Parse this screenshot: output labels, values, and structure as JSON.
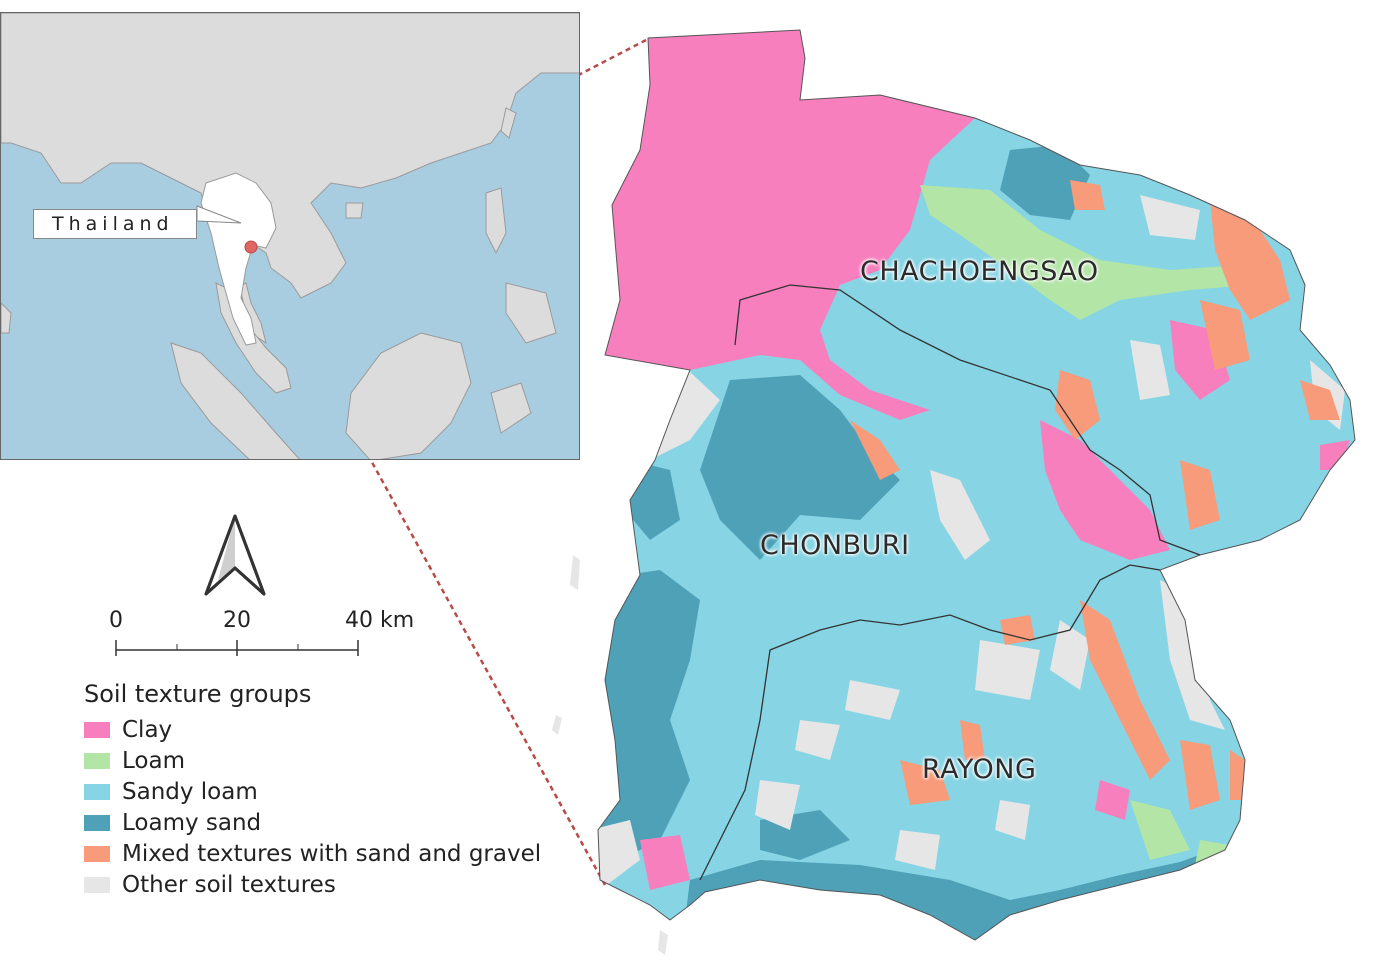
{
  "inset": {
    "callout_label": "Thailand",
    "colors": {
      "sea": "#a9cde0",
      "land": "#dcdcdc",
      "highlight": "#ffffff",
      "marker": "#e06464"
    }
  },
  "map": {
    "regions": [
      {
        "id": "chachoengsao",
        "label": "CHACHOENGSAO"
      },
      {
        "id": "chonburi",
        "label": "CHONBURI"
      },
      {
        "id": "rayong",
        "label": "RAYONG"
      }
    ],
    "leader_line_color": "#b94a48"
  },
  "north_arrow": {
    "icon": "north-arrow-icon"
  },
  "scale": {
    "ticks": [
      "0",
      "20",
      "40 km"
    ]
  },
  "legend": {
    "title": "Soil texture groups",
    "items": [
      {
        "label": "Clay",
        "color": "#f77fbe"
      },
      {
        "label": "Loam",
        "color": "#b2e5a6"
      },
      {
        "label": "Sandy loam",
        "color": "#86d4e4"
      },
      {
        "label": "Loamy sand",
        "color": "#4fa1b8"
      },
      {
        "label": "Mixed textures with sand and gravel",
        "color": "#f79b7a"
      },
      {
        "label": "Other soil textures",
        "color": "#e6e6e6"
      }
    ]
  }
}
